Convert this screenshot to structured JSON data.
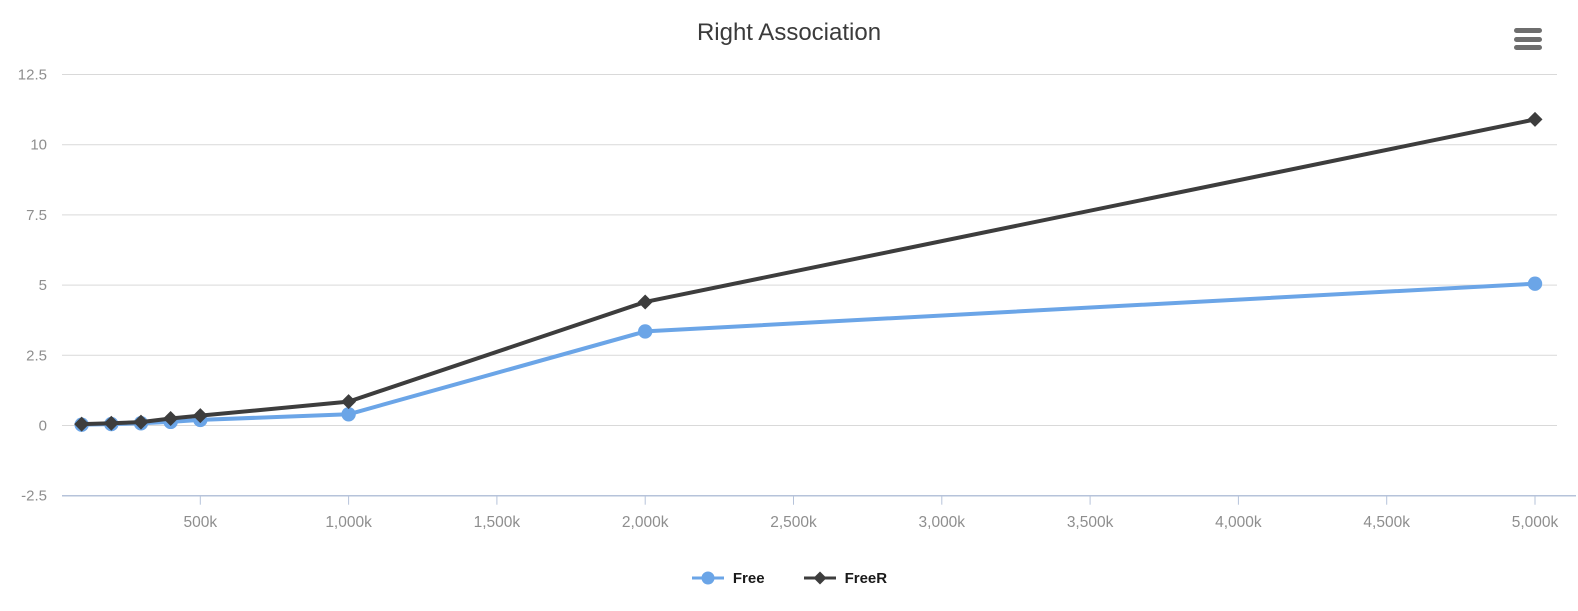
{
  "header": {
    "title": "Right Association",
    "export_menu_icon": "hamburger-menu-icon"
  },
  "chart_data": {
    "type": "line",
    "title": "Right Association",
    "x_unit": "k",
    "x_k": [
      100,
      200,
      300,
      400,
      500,
      1000,
      2000,
      5000
    ],
    "series": [
      {
        "name": "Free",
        "color": "#6ba5e7",
        "marker": "circle",
        "values": [
          0.03,
          0.05,
          0.08,
          0.13,
          0.2,
          0.4,
          3.35,
          5.05
        ]
      },
      {
        "name": "FreeR",
        "color": "#3d3d3d",
        "marker": "diamond",
        "values": [
          0.05,
          0.08,
          0.12,
          0.25,
          0.35,
          0.85,
          4.4,
          10.9
        ]
      }
    ],
    "x_axis": {
      "tick_values_k": [
        500,
        1000,
        1500,
        2000,
        2500,
        3000,
        3500,
        4000,
        4500,
        5000
      ],
      "tick_labels": [
        "500k",
        "1,000k",
        "1,500k",
        "2,000k",
        "2,500k",
        "3,000k",
        "3,500k",
        "4,000k",
        "4,500k",
        "5,000k"
      ]
    },
    "y_axis": {
      "min": -2.5,
      "max": 12.5,
      "tick_values": [
        12.5,
        10,
        7.5,
        5,
        2.5,
        0,
        -2.5
      ],
      "tick_labels": [
        "12.5",
        "10",
        "7.5",
        "5",
        "2.5",
        "0",
        "-2.5"
      ]
    },
    "legend": {
      "position": "bottom",
      "items": [
        "Free",
        "FreeR"
      ]
    },
    "grid": true,
    "colors": {
      "background": "#ffffff",
      "gridline": "#d9d9d9",
      "axis_line": "#b6c3da",
      "tick_label": "#8e8e8e",
      "title": "#3b3b3b",
      "legend_text": "#1a1a1a",
      "menu_icon": "#6e6e6e"
    }
  }
}
